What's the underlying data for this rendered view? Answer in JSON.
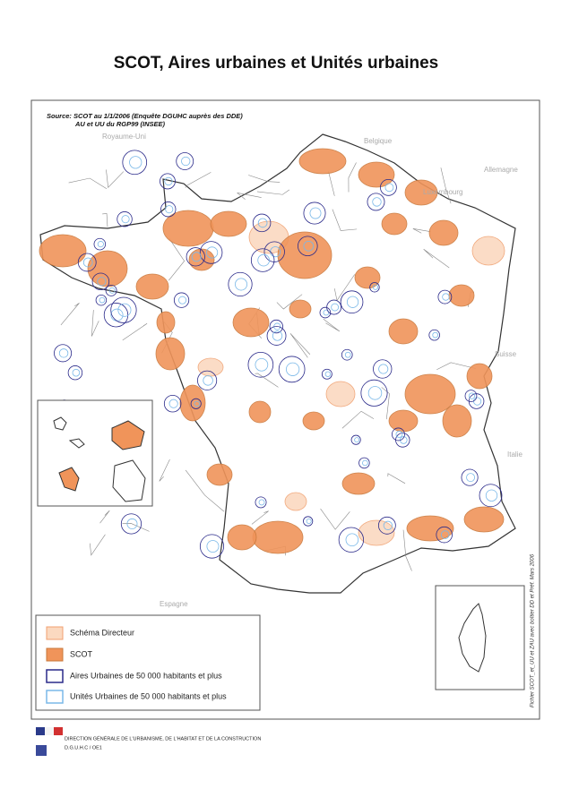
{
  "title": "SCOT, Aires urbaines et Unités urbaines",
  "source": {
    "line1": "Source: SCOT au 1/1/2006 (Enquête DGUHC auprès des DDE)",
    "line2": "AU et UU du RGP99 (INSEE)"
  },
  "countries": [
    "Royaume-Uni",
    "Belgique",
    "Allemagne",
    "Luxembourg",
    "Suisse",
    "Italie",
    "Espagne"
  ],
  "legend": {
    "items": [
      "Schéma Directeur",
      "SCOT",
      "Aires Urbaines de 50 000 habitants et plus",
      "Unités Urbaines de 50 000 habitants et plus"
    ]
  },
  "file_note": "Fichier SCOT_et_UU et ZAU avec boîtier DD et Préf. Mars 2006",
  "footer": {
    "org": "DIRECTION GÉNÉRALE DE L'URBANISME, DE L'HABITAT ET DE LA CONSTRUCTION",
    "unit": "D.G.U.H.C / OE1"
  }
}
